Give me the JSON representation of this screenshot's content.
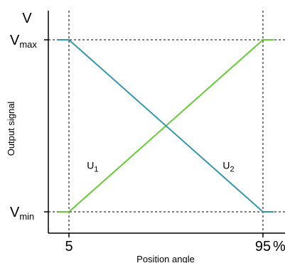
{
  "chart_data": {
    "type": "line",
    "xlabel": "Position angle",
    "ylabel": "Output signal",
    "y_unit": "V",
    "x_unit": "%",
    "x_ticks": [
      "5",
      "95"
    ],
    "y_ticks": [
      {
        "base": "V",
        "sub": "max"
      },
      {
        "base": "V",
        "sub": "min"
      }
    ],
    "xlim": [
      -5,
      105
    ],
    "ylim": [
      0,
      1
    ],
    "grid": "dashed reference lines at x=5, x=95, y=Vmin, y=Vmax",
    "series": [
      {
        "name": "U1",
        "label_base": "U",
        "label_sub": "1",
        "color": "#66cc33",
        "points": [
          [
            0,
            0
          ],
          [
            5,
            0
          ],
          [
            95,
            1
          ],
          [
            100,
            1
          ]
        ]
      },
      {
        "name": "U2",
        "label_base": "U",
        "label_sub": "2",
        "color": "#3399aa",
        "points": [
          [
            0,
            1
          ],
          [
            5,
            1
          ],
          [
            95,
            0
          ],
          [
            100,
            0
          ]
        ]
      }
    ],
    "series_label_positions": [
      [
        16,
        0.25
      ],
      [
        79,
        0.25
      ]
    ],
    "reference_lines": {
      "x": [
        5,
        95
      ],
      "y": [
        0,
        1
      ]
    }
  }
}
